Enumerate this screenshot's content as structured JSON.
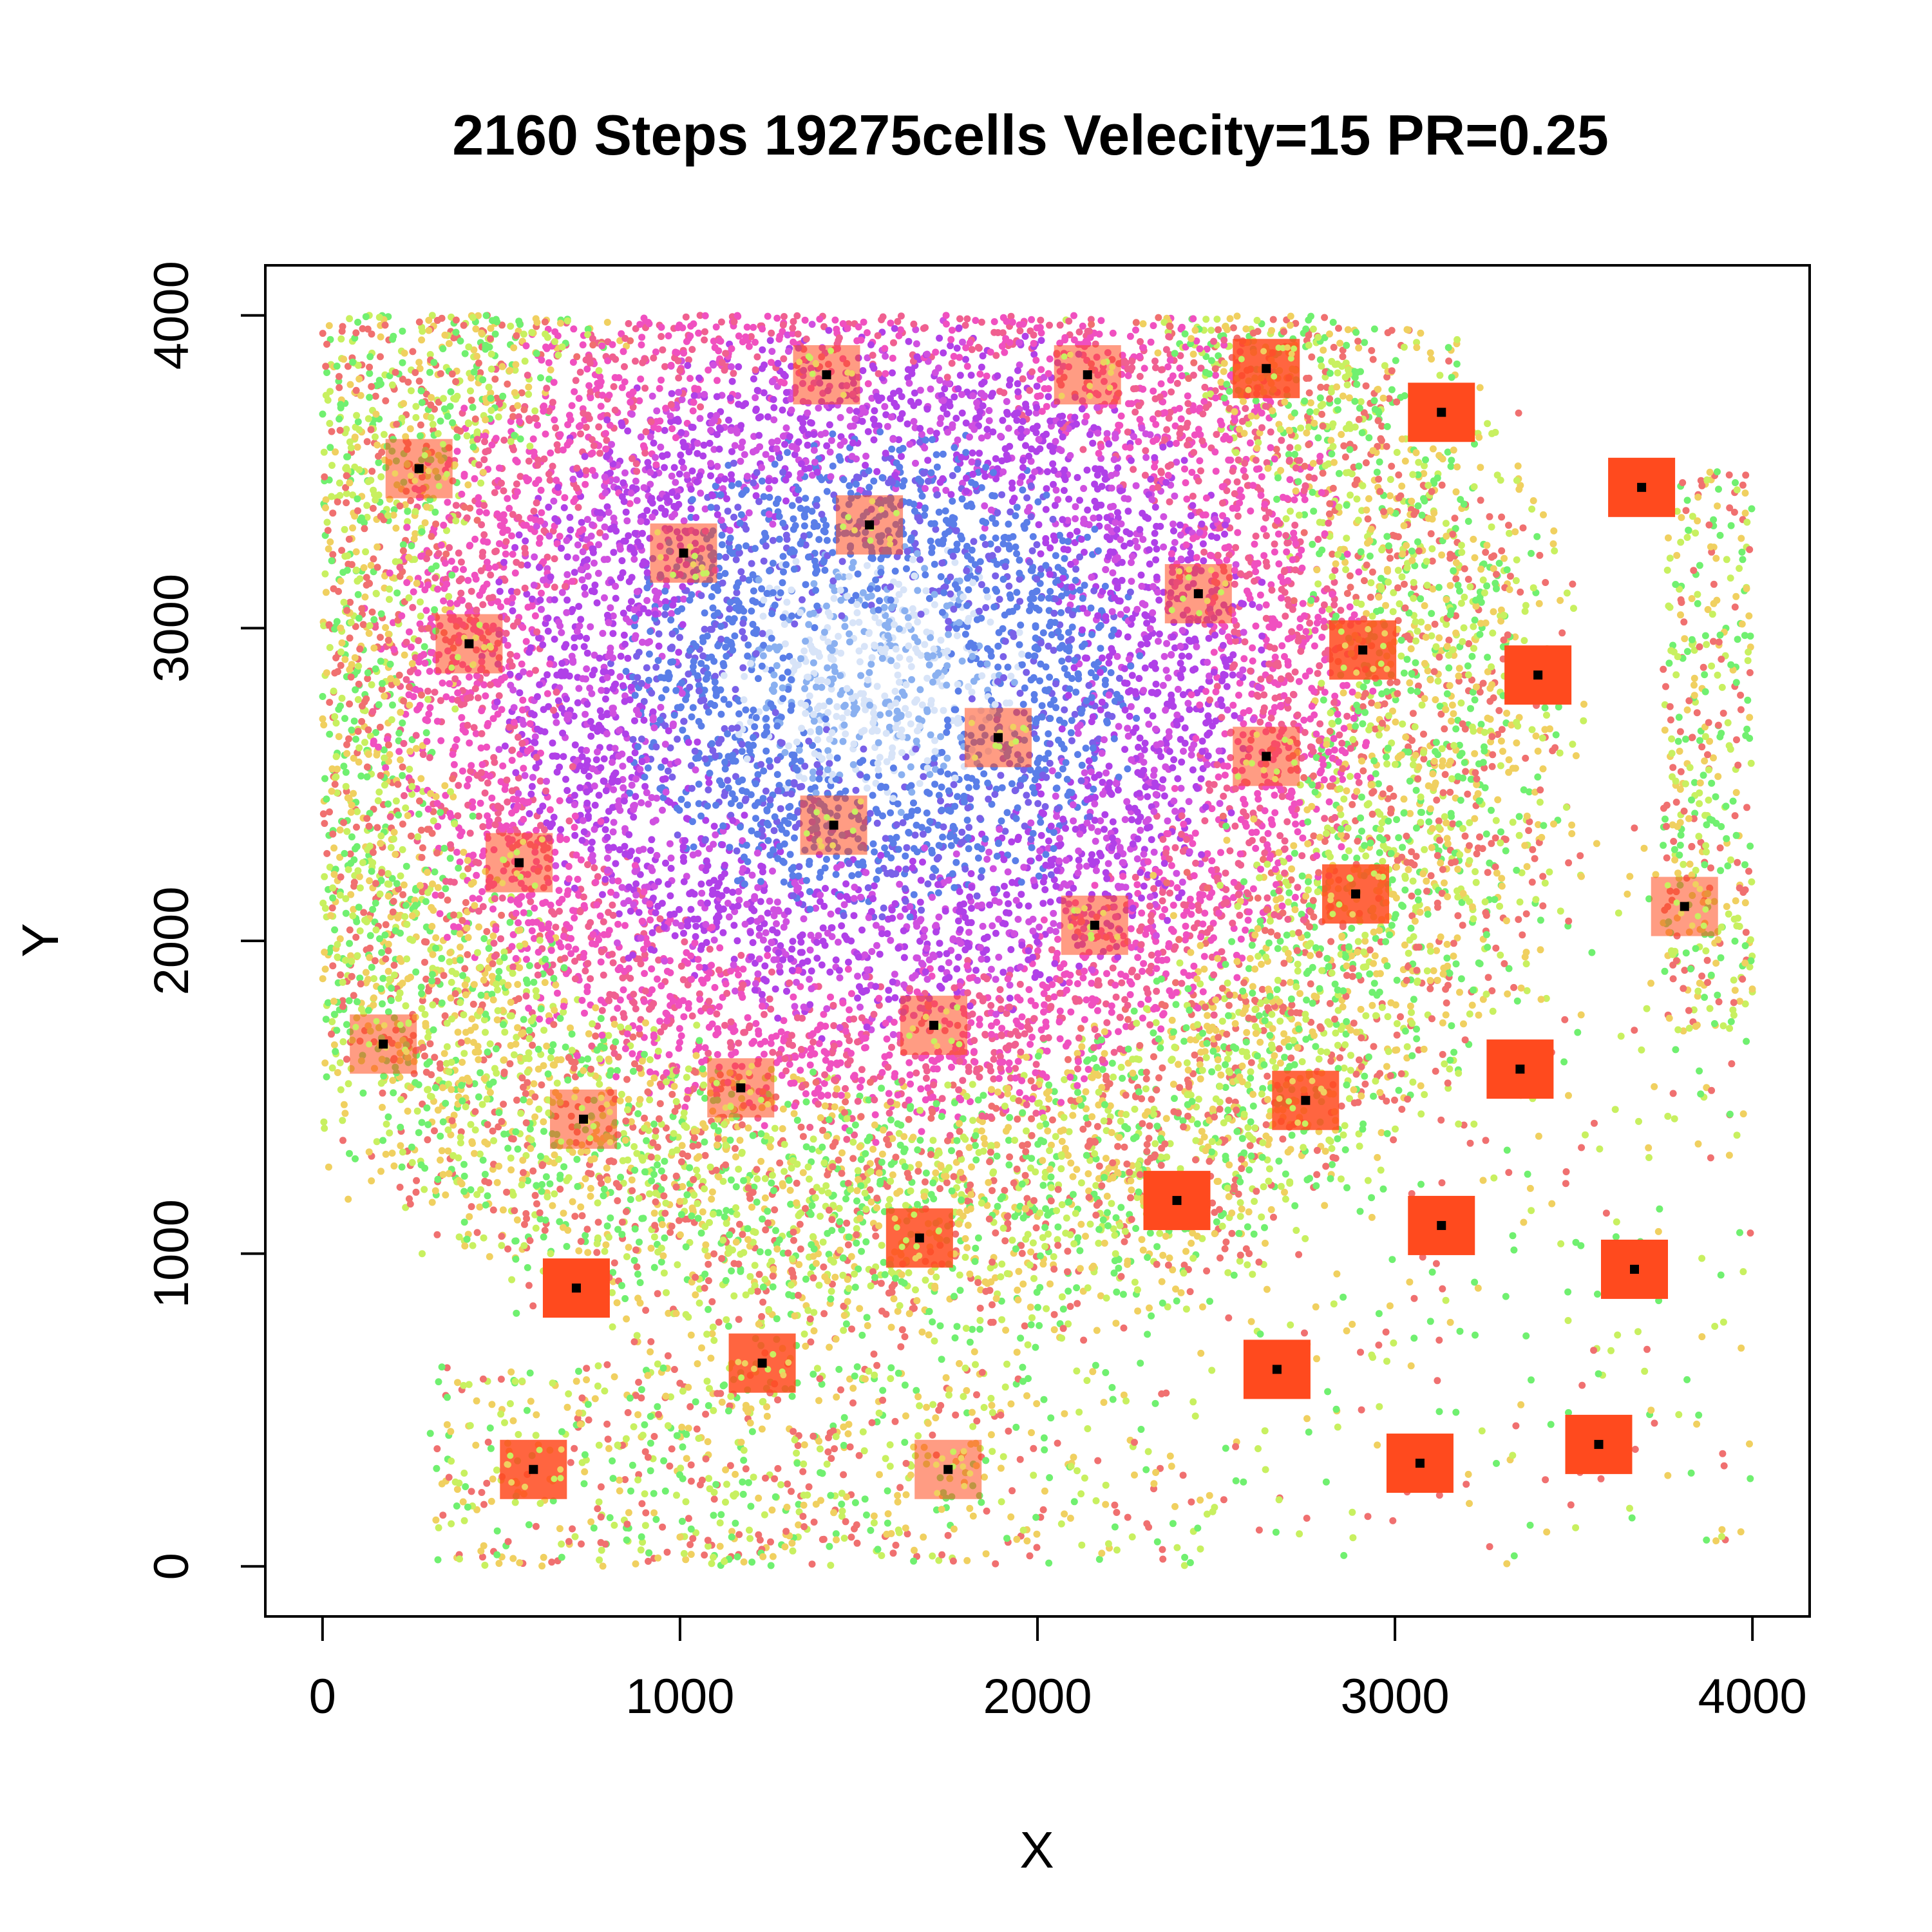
{
  "chart_data": {
    "type": "scatter",
    "title": "2160 Steps   19275cells  Velecity=15   PR=0.25",
    "xlabel": "X",
    "ylabel": "Y",
    "xlim": [
      -160,
      4160
    ],
    "ylim": [
      -160,
      4160
    ],
    "xticks": [
      0,
      1000,
      2000,
      3000,
      4000
    ],
    "yticks": [
      0,
      1000,
      2000,
      3000,
      4000
    ],
    "xtick_labels": [
      "0",
      "1000",
      "2000",
      "3000",
      "4000"
    ],
    "ytick_labels": [
      "0",
      "1000",
      "2000",
      "3000",
      "4000"
    ],
    "grid": false,
    "legend": "none",
    "palette": {
      "inner_core": "#d8e4f8",
      "core": "#5a7ee8",
      "mid": "#b040e8",
      "ring": "#f050c0",
      "outer": "#f07070",
      "outer2": "#f0d060",
      "outer3": "#c8f060",
      "edge": "#70f070",
      "source_square": "#ff4a1e",
      "center_marker": "#000000"
    },
    "cell_cloud": {
      "cell_count": 19275,
      "center": [
        1550,
        2850
      ],
      "extent_x": [
        0,
        4000
      ],
      "extent_y": [
        0,
        4000
      ]
    },
    "sources": [
      {
        "x": 270,
        "y": 3510,
        "saturation": "covered"
      },
      {
        "x": 410,
        "y": 2950,
        "saturation": "covered"
      },
      {
        "x": 550,
        "y": 2250,
        "saturation": "covered"
      },
      {
        "x": 170,
        "y": 1670,
        "saturation": "covered"
      },
      {
        "x": 730,
        "y": 1430,
        "saturation": "covered"
      },
      {
        "x": 1170,
        "y": 1530,
        "saturation": "covered"
      },
      {
        "x": 1010,
        "y": 3240,
        "saturation": "covered"
      },
      {
        "x": 1410,
        "y": 3810,
        "saturation": "covered"
      },
      {
        "x": 1530,
        "y": 3330,
        "saturation": "covered"
      },
      {
        "x": 1430,
        "y": 2370,
        "saturation": "covered"
      },
      {
        "x": 1890,
        "y": 2650,
        "saturation": "covered"
      },
      {
        "x": 1710,
        "y": 1730,
        "saturation": "covered"
      },
      {
        "x": 2140,
        "y": 3810,
        "saturation": "covered"
      },
      {
        "x": 2450,
        "y": 3110,
        "saturation": "covered"
      },
      {
        "x": 2160,
        "y": 2050,
        "saturation": "covered"
      },
      {
        "x": 2640,
        "y": 2590,
        "saturation": "covered"
      },
      {
        "x": 2640,
        "y": 3830,
        "saturation": "partial"
      },
      {
        "x": 2910,
        "y": 2930,
        "saturation": "partial"
      },
      {
        "x": 2890,
        "y": 2150,
        "saturation": "partial"
      },
      {
        "x": 3130,
        "y": 3690,
        "saturation": "empty"
      },
      {
        "x": 3690,
        "y": 3450,
        "saturation": "empty"
      },
      {
        "x": 3400,
        "y": 2850,
        "saturation": "empty"
      },
      {
        "x": 3810,
        "y": 2110,
        "saturation": "covered"
      },
      {
        "x": 2750,
        "y": 1490,
        "saturation": "partial"
      },
      {
        "x": 3350,
        "y": 1590,
        "saturation": "empty"
      },
      {
        "x": 2390,
        "y": 1170,
        "saturation": "empty"
      },
      {
        "x": 3130,
        "y": 1090,
        "saturation": "empty"
      },
      {
        "x": 3670,
        "y": 950,
        "saturation": "empty"
      },
      {
        "x": 1670,
        "y": 1050,
        "saturation": "partial"
      },
      {
        "x": 710,
        "y": 890,
        "saturation": "empty"
      },
      {
        "x": 1230,
        "y": 650,
        "saturation": "partial"
      },
      {
        "x": 2670,
        "y": 630,
        "saturation": "empty"
      },
      {
        "x": 3570,
        "y": 390,
        "saturation": "empty"
      },
      {
        "x": 3070,
        "y": 330,
        "saturation": "empty"
      },
      {
        "x": 590,
        "y": 310,
        "saturation": "partial"
      },
      {
        "x": 1750,
        "y": 310,
        "saturation": "covered"
      }
    ]
  }
}
